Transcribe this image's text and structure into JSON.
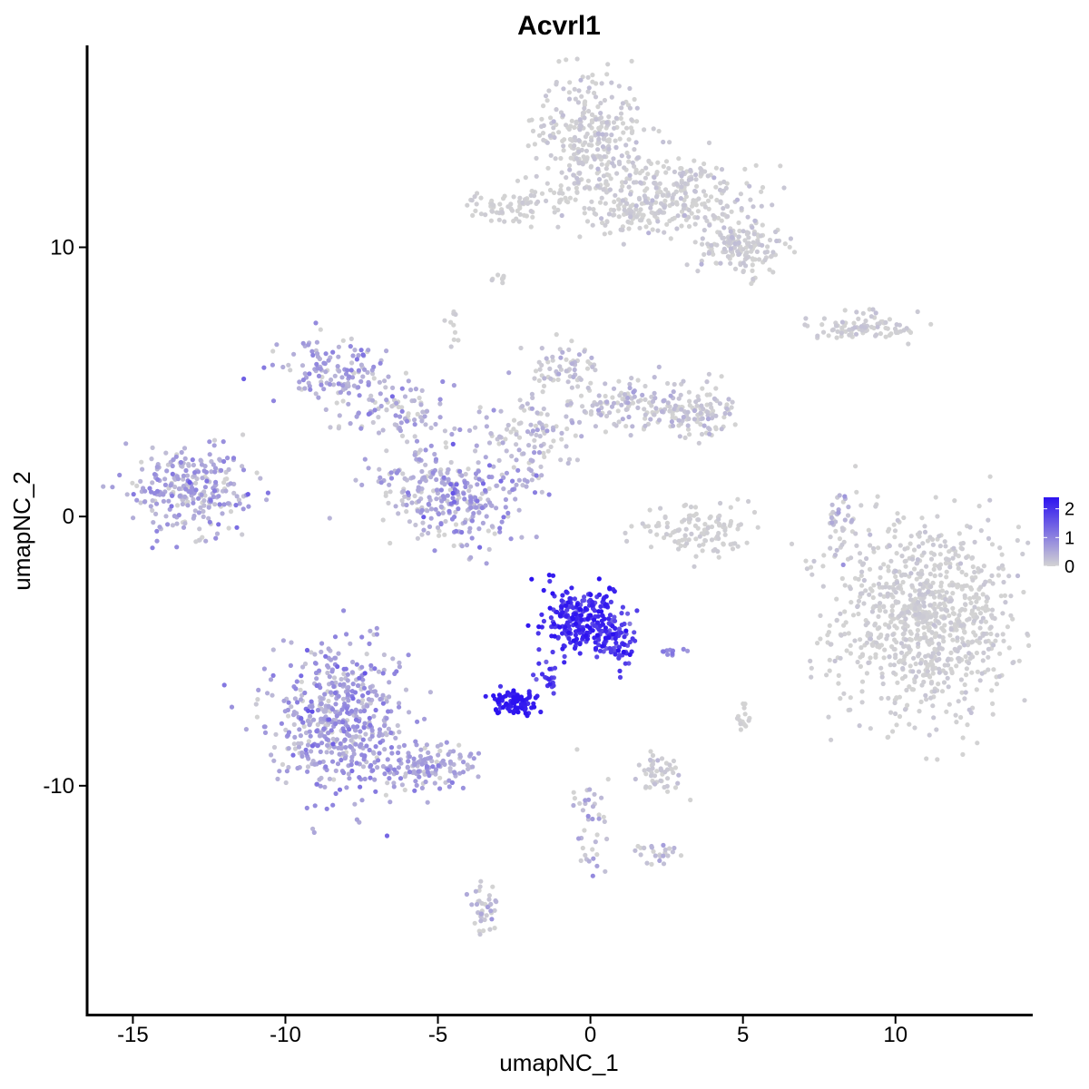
{
  "chart_data": {
    "type": "scatter",
    "title": "Acvrl1",
    "xlabel": "umapNC_1",
    "ylabel": "umapNC_2",
    "xlim": [
      -16.5,
      14.5
    ],
    "ylim": [
      -18.5,
      17.5
    ],
    "x_ticks": [
      -15,
      -10,
      -5,
      0,
      5,
      10
    ],
    "y_ticks": [
      -10,
      0,
      10
    ],
    "x_tick_labels": [
      "-15",
      "-10",
      "-5",
      "0",
      "5",
      "10"
    ],
    "y_tick_labels": [
      "-10",
      "0",
      "10"
    ],
    "grid": false,
    "point_color_low": "#d3d3d3",
    "point_color_high": "#2c12f0",
    "legend": {
      "placement": "right",
      "min": 0,
      "max": 2.4,
      "ticks": [
        0,
        1,
        2
      ],
      "tick_labels": [
        "0",
        "1",
        "2"
      ]
    },
    "clusters": [
      {
        "cx": 11.0,
        "cy": -3.8,
        "sx": 1.7,
        "sy": 2.1,
        "n": 900,
        "expr_mean": 0.03,
        "expr_sd": 0.08
      },
      {
        "cx": 0.0,
        "cy": 14.0,
        "sx": 1.0,
        "sy": 1.3,
        "n": 320,
        "expr_mean": 0.05,
        "expr_sd": 0.12
      },
      {
        "cx": 2.8,
        "cy": 12.0,
        "sx": 1.6,
        "sy": 0.8,
        "n": 260,
        "expr_mean": 0.05,
        "expr_sd": 0.12
      },
      {
        "cx": 5.0,
        "cy": 10.0,
        "sx": 0.8,
        "sy": 0.6,
        "n": 160,
        "expr_mean": 0.05,
        "expr_sd": 0.1
      },
      {
        "cx": -2.5,
        "cy": 11.5,
        "sx": 1.0,
        "sy": 0.4,
        "n": 80,
        "expr_mean": 0.02,
        "expr_sd": 0.05
      },
      {
        "cx": 1.5,
        "cy": 11.2,
        "sx": 0.8,
        "sy": 0.3,
        "n": 60,
        "expr_mean": 0.02,
        "expr_sd": 0.05
      },
      {
        "cx": 9.0,
        "cy": 7.0,
        "sx": 1.0,
        "sy": 0.3,
        "n": 90,
        "expr_mean": 0.05,
        "expr_sd": 0.1
      },
      {
        "cx": -13.2,
        "cy": 1.0,
        "sx": 1.1,
        "sy": 0.8,
        "n": 280,
        "expr_mean": 0.45,
        "expr_sd": 0.35
      },
      {
        "cx": -8.2,
        "cy": 5.3,
        "sx": 1.0,
        "sy": 0.7,
        "n": 140,
        "expr_mean": 0.5,
        "expr_sd": 0.35
      },
      {
        "cx": -6.0,
        "cy": 3.8,
        "sx": 1.2,
        "sy": 0.7,
        "n": 90,
        "expr_mean": 0.35,
        "expr_sd": 0.3
      },
      {
        "cx": -5.3,
        "cy": 1.0,
        "sx": 1.0,
        "sy": 0.8,
        "n": 130,
        "expr_mean": 0.3,
        "expr_sd": 0.3
      },
      {
        "cx": -4.0,
        "cy": 0.5,
        "sx": 0.9,
        "sy": 1.0,
        "n": 160,
        "expr_mean": 0.55,
        "expr_sd": 0.35
      },
      {
        "cx": -2.0,
        "cy": 3.0,
        "sx": 1.0,
        "sy": 0.8,
        "n": 100,
        "expr_mean": 0.2,
        "expr_sd": 0.25
      },
      {
        "cx": -1.0,
        "cy": 5.5,
        "sx": 0.7,
        "sy": 0.6,
        "n": 70,
        "expr_mean": 0.15,
        "expr_sd": 0.2
      },
      {
        "cx": 1.5,
        "cy": 4.2,
        "sx": 1.2,
        "sy": 0.6,
        "n": 130,
        "expr_mean": 0.15,
        "expr_sd": 0.2
      },
      {
        "cx": 3.5,
        "cy": 3.8,
        "sx": 0.6,
        "sy": 0.5,
        "n": 100,
        "expr_mean": 0.1,
        "expr_sd": 0.2
      },
      {
        "cx": 3.5,
        "cy": -0.6,
        "sx": 1.1,
        "sy": 0.5,
        "n": 120,
        "expr_mean": 0.03,
        "expr_sd": 0.06
      },
      {
        "cx": 8.2,
        "cy": 0.0,
        "sx": 0.25,
        "sy": 0.8,
        "n": 40,
        "expr_mean": 0.2,
        "expr_sd": 0.3
      },
      {
        "cx": -8.3,
        "cy": -7.5,
        "sx": 1.2,
        "sy": 1.5,
        "n": 520,
        "expr_mean": 0.6,
        "expr_sd": 0.35
      },
      {
        "cx": -5.5,
        "cy": -9.3,
        "sx": 1.0,
        "sy": 0.5,
        "n": 140,
        "expr_mean": 0.55,
        "expr_sd": 0.3
      },
      {
        "cx": -0.3,
        "cy": -3.8,
        "sx": 0.7,
        "sy": 0.7,
        "n": 240,
        "expr_mean": 2.05,
        "expr_sd": 0.25
      },
      {
        "cx": 0.8,
        "cy": -4.8,
        "sx": 0.35,
        "sy": 0.5,
        "n": 60,
        "expr_mean": 1.85,
        "expr_sd": 0.3
      },
      {
        "cx": -2.4,
        "cy": -6.9,
        "sx": 0.4,
        "sy": 0.25,
        "n": 90,
        "expr_mean": 2.25,
        "expr_sd": 0.15
      },
      {
        "cx": -1.5,
        "cy": -6.0,
        "sx": 0.3,
        "sy": 0.4,
        "n": 20,
        "expr_mean": 1.9,
        "expr_sd": 0.2
      },
      {
        "cx": 2.3,
        "cy": -9.5,
        "sx": 0.4,
        "sy": 0.4,
        "n": 50,
        "expr_mean": 0.05,
        "expr_sd": 0.1
      },
      {
        "cx": 0.0,
        "cy": -11.5,
        "sx": 0.4,
        "sy": 1.0,
        "n": 40,
        "expr_mean": 0.25,
        "expr_sd": 0.3
      },
      {
        "cx": 2.0,
        "cy": -12.5,
        "sx": 0.5,
        "sy": 0.2,
        "n": 25,
        "expr_mean": 0.1,
        "expr_sd": 0.2
      },
      {
        "cx": -3.5,
        "cy": -14.5,
        "sx": 0.3,
        "sy": 0.6,
        "n": 40,
        "expr_mean": 0.15,
        "expr_sd": 0.2
      },
      {
        "cx": 5.0,
        "cy": -7.5,
        "sx": 0.2,
        "sy": 0.3,
        "n": 15,
        "expr_mean": 0.0,
        "expr_sd": 0.05
      },
      {
        "cx": 2.8,
        "cy": -5.0,
        "sx": 0.3,
        "sy": 0.1,
        "n": 10,
        "expr_mean": 0.9,
        "expr_sd": 0.2
      },
      {
        "cx": 1.0,
        "cy": -4.0,
        "sx": 0.3,
        "sy": 0.3,
        "n": 15,
        "expr_mean": 1.6,
        "expr_sd": 0.3
      },
      {
        "cx": -4.5,
        "cy": 7.2,
        "sx": 0.1,
        "sy": 0.4,
        "n": 10,
        "expr_mean": 0.0,
        "expr_sd": 0.05
      },
      {
        "cx": -3.0,
        "cy": 8.8,
        "sx": 0.2,
        "sy": 0.15,
        "n": 8,
        "expr_mean": 0.0,
        "expr_sd": 0.05
      },
      {
        "cx": -2.2,
        "cy": 1.2,
        "sx": 0.5,
        "sy": 0.3,
        "n": 15,
        "expr_mean": 0.5,
        "expr_sd": 0.3
      }
    ]
  }
}
